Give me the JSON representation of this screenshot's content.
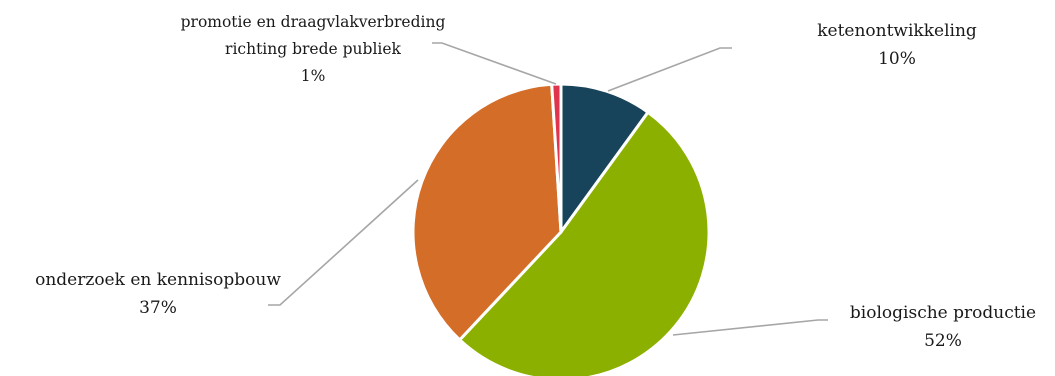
{
  "chart_data": {
    "type": "pie",
    "title": "",
    "slices": [
      {
        "name": "ketenontwikkeling",
        "value": 10,
        "value_label": "10%",
        "color": "#17445b"
      },
      {
        "name": "biologische productie",
        "value": 52,
        "value_label": "52%",
        "color": "#8cb000"
      },
      {
        "name": "onderzoek en kennisopbouw",
        "value": 37,
        "value_label": "37%",
        "color": "#d46d27"
      },
      {
        "name": "promotie en draagvlakverbreding richting brede publiek",
        "name_lines": [
          "promotie en draagvlakverbreding",
          "richting brede publiek"
        ],
        "value": 1,
        "value_label": "1%",
        "color": "#e0334d"
      }
    ],
    "legend": "none",
    "data_labels": "outside with leader lines"
  }
}
